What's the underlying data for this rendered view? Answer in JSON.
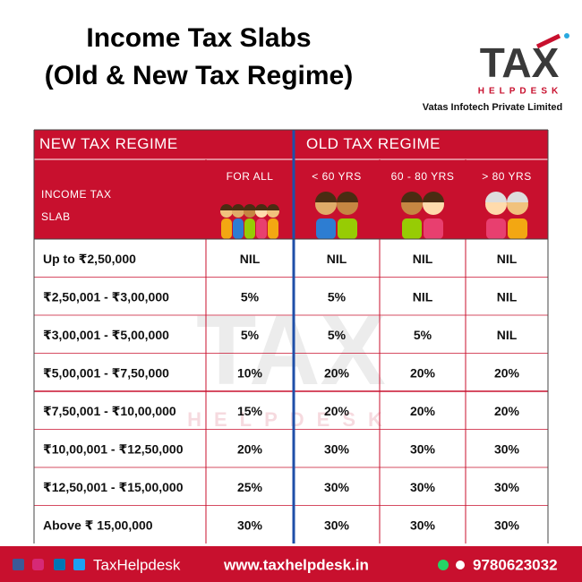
{
  "header": {
    "title_lines": [
      "Income Tax Slabs",
      "(Old & New Tax Regime)"
    ]
  },
  "logo": {
    "tax": "TAX",
    "helpdesk": "HELPDESK",
    "company": "Vatas Infotech Private Limited"
  },
  "table": {
    "group_headers": [
      "NEW TAX REGIME",
      "OLD TAX REGIME"
    ],
    "slab_header": [
      "INCOME TAX",
      "SLAB"
    ],
    "column_headers": [
      "FOR ALL",
      "< 60 YRS",
      "60 - 80 YRS",
      "> 80 YRS"
    ],
    "rows": [
      [
        "Up to ₹2,50,000",
        "NIL",
        "NIL",
        "NIL",
        "NIL"
      ],
      [
        "₹2,50,001 - ₹3,00,000",
        "5%",
        "5%",
        "NIL",
        "NIL"
      ],
      [
        "₹3,00,001 - ₹5,00,000",
        "5%",
        "5%",
        "5%",
        "NIL"
      ],
      [
        "₹5,00,001 - ₹7,50,000",
        "10%",
        "20%",
        "20%",
        "20%"
      ],
      [
        "₹7,50,001 - ₹10,00,000",
        "15%",
        "20%",
        "20%",
        "20%"
      ],
      [
        "₹10,00,001 - ₹12,50,000",
        "20%",
        "30%",
        "30%",
        "30%"
      ],
      [
        "₹12,50,001 - ₹15,00,000",
        "25%",
        "30%",
        "30%",
        "30%"
      ],
      [
        "Above ₹ 15,00,000",
        "30%",
        "30%",
        "30%",
        "30%"
      ]
    ]
  },
  "footer": {
    "brand": "TaxHelpdesk",
    "website": "www.taxhelpdesk.in",
    "phone": "9780623032"
  }
}
